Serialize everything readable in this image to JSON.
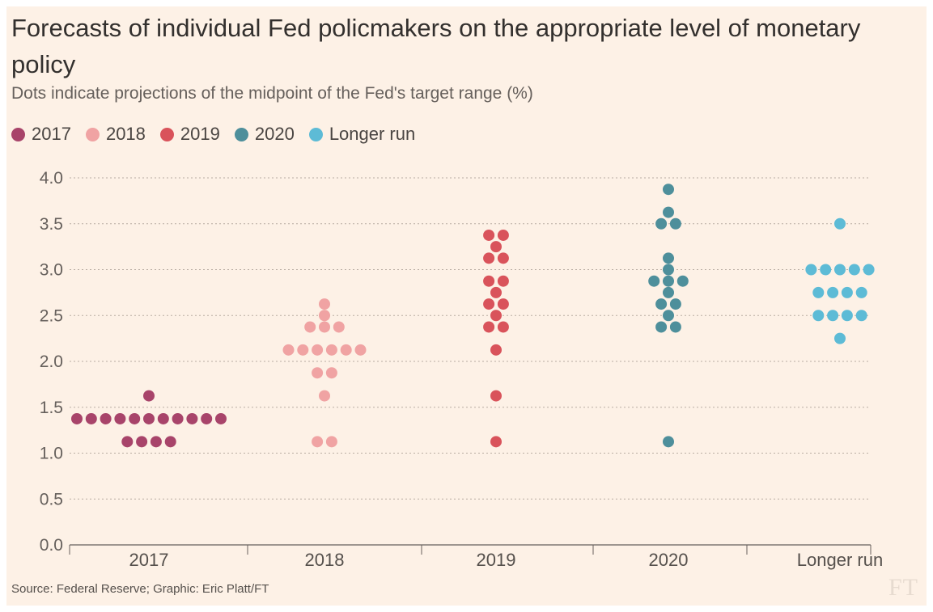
{
  "title": "Forecasts of individual Fed policmakers on the appropriate level of monetary policy",
  "subtitle": "Dots indicate projections of the midpoint of the Fed's target range (%)",
  "source": "Source: Federal Reserve; Graphic: Eric Platt/FT",
  "logo": "FT",
  "colors": {
    "2017": "#a8446a",
    "2018": "#f0a3a3",
    "2019": "#d9535b",
    "2020": "#4e8f9b",
    "Longer run": "#5dbbd6"
  },
  "legend": [
    {
      "label": "2017",
      "color": "#a8446a"
    },
    {
      "label": "2018",
      "color": "#f0a3a3"
    },
    {
      "label": "2019",
      "color": "#d9535b"
    },
    {
      "label": "2020",
      "color": "#4e8f9b"
    },
    {
      "label": "Longer run",
      "color": "#5dbbd6"
    }
  ],
  "chart_data": {
    "type": "scatter",
    "title": "Forecasts of individual Fed policmakers on the appropriate level of monetary policy",
    "subtitle": "Dots indicate projections of the midpoint of the Fed's target range (%)",
    "categories": [
      "2017",
      "2018",
      "2019",
      "2020",
      "Longer run"
    ],
    "ylim": [
      0,
      4
    ],
    "yticks": [
      "0.0",
      "0.5",
      "1.0",
      "1.5",
      "2.0",
      "2.5",
      "3.0",
      "3.5",
      "4.0"
    ],
    "grid": true,
    "legend_position": "top-left",
    "series": [
      {
        "name": "2017",
        "dots": [
          {
            "y": 1.625,
            "count": 1
          },
          {
            "y": 1.375,
            "count": 11
          },
          {
            "y": 1.125,
            "count": 4
          }
        ]
      },
      {
        "name": "2018",
        "dots": [
          {
            "y": 2.625,
            "count": 1
          },
          {
            "y": 2.5,
            "count": 1
          },
          {
            "y": 2.375,
            "count": 3
          },
          {
            "y": 2.125,
            "count": 6
          },
          {
            "y": 1.875,
            "count": 2
          },
          {
            "y": 1.625,
            "count": 1
          },
          {
            "y": 1.125,
            "count": 2
          }
        ]
      },
      {
        "name": "2019",
        "dots": [
          {
            "y": 3.375,
            "count": 2
          },
          {
            "y": 3.25,
            "count": 1
          },
          {
            "y": 3.125,
            "count": 2
          },
          {
            "y": 2.875,
            "count": 2
          },
          {
            "y": 2.75,
            "count": 1
          },
          {
            "y": 2.625,
            "count": 2
          },
          {
            "y": 2.5,
            "count": 1
          },
          {
            "y": 2.375,
            "count": 2
          },
          {
            "y": 2.125,
            "count": 1
          },
          {
            "y": 1.625,
            "count": 1
          },
          {
            "y": 1.125,
            "count": 1
          }
        ]
      },
      {
        "name": "2020",
        "dots": [
          {
            "y": 3.875,
            "count": 1
          },
          {
            "y": 3.625,
            "count": 1
          },
          {
            "y": 3.5,
            "count": 2
          },
          {
            "y": 3.125,
            "count": 1
          },
          {
            "y": 3.0,
            "count": 1
          },
          {
            "y": 2.875,
            "count": 3
          },
          {
            "y": 2.75,
            "count": 1
          },
          {
            "y": 2.625,
            "count": 2
          },
          {
            "y": 2.5,
            "count": 1
          },
          {
            "y": 2.375,
            "count": 2
          },
          {
            "y": 1.125,
            "count": 1
          }
        ]
      },
      {
        "name": "Longer run",
        "dots": [
          {
            "y": 3.5,
            "count": 1
          },
          {
            "y": 3.0,
            "count": 5
          },
          {
            "y": 2.75,
            "count": 4
          },
          {
            "y": 2.5,
            "count": 4
          },
          {
            "y": 2.25,
            "count": 1
          }
        ]
      }
    ]
  }
}
